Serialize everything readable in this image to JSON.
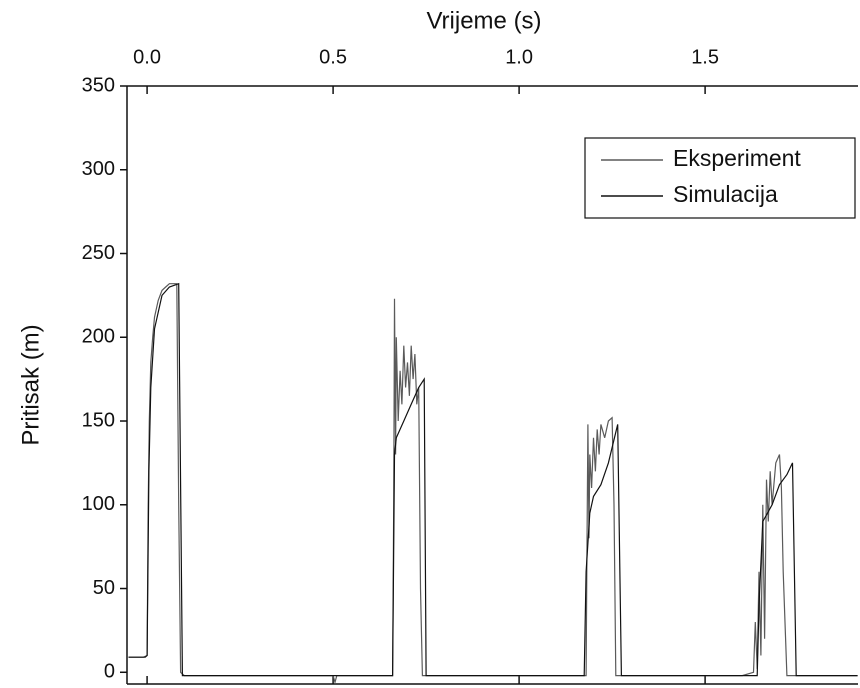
{
  "chart_data": {
    "type": "line",
    "x_label": "Vrijeme (s)",
    "y_label": "Pritisak (m)",
    "xlim": [
      -0.054,
      1.911
    ],
    "ylim": [
      -7,
      350
    ],
    "xticks": [
      {
        "value": 0,
        "label": "0.0"
      },
      0.5,
      {
        "value": 1,
        "label": "1.0"
      },
      1.5
    ],
    "yticks": [
      0,
      50,
      100,
      150,
      200,
      250,
      300,
      350
    ],
    "legend": "upper right",
    "series": [
      {
        "name": "Eksperiment",
        "color": "#5a5a5a",
        "x": [
          -0.05,
          -0.01,
          0.0,
          0.003,
          0.006,
          0.01,
          0.015,
          0.02,
          0.03,
          0.04,
          0.05,
          0.06,
          0.08,
          0.085,
          0.09,
          0.1,
          0.5,
          0.505,
          0.51,
          0.66,
          0.663,
          0.665,
          0.668,
          0.67,
          0.675,
          0.68,
          0.685,
          0.69,
          0.695,
          0.7,
          0.705,
          0.71,
          0.715,
          0.72,
          0.725,
          0.73,
          0.735,
          0.74,
          0.75,
          1.0,
          1.18,
          1.182,
          1.185,
          1.188,
          1.19,
          1.195,
          1.2,
          1.205,
          1.21,
          1.215,
          1.22,
          1.23,
          1.24,
          1.25,
          1.255,
          1.26,
          1.27,
          1.6,
          1.63,
          1.635,
          1.64,
          1.645,
          1.65,
          1.655,
          1.66,
          1.665,
          1.67,
          1.675,
          1.68,
          1.69,
          1.7,
          1.705,
          1.71,
          1.72,
          1.91
        ],
        "values": [
          9,
          9,
          10,
          100,
          150,
          185,
          200,
          212,
          222,
          228,
          230,
          232,
          232,
          100,
          0,
          -2,
          -2,
          -6,
          -2,
          -2,
          100,
          223,
          130,
          200,
          150,
          180,
          160,
          195,
          170,
          185,
          165,
          195,
          175,
          190,
          160,
          170,
          50,
          -2,
          -2,
          -2,
          -2,
          60,
          148,
          80,
          130,
          110,
          140,
          120,
          145,
          130,
          148,
          140,
          150,
          152,
          100,
          -2,
          -2,
          -2,
          0,
          30,
          2,
          60,
          10,
          100,
          20,
          115,
          90,
          120,
          100,
          125,
          130,
          110,
          60,
          -2,
          -2
        ]
      },
      {
        "name": "Simulacija",
        "color": "#111111",
        "x": [
          -0.05,
          -0.005,
          0.0,
          0.005,
          0.01,
          0.02,
          0.04,
          0.06,
          0.085,
          0.095,
          0.66,
          0.665,
          0.67,
          0.69,
          0.71,
          0.73,
          0.745,
          0.75,
          1.175,
          1.18,
          1.19,
          1.2,
          1.22,
          1.24,
          1.265,
          1.275,
          1.64,
          1.645,
          1.655,
          1.68,
          1.7,
          1.72,
          1.735,
          1.745,
          1.91
        ],
        "values": [
          9,
          9,
          10,
          120,
          170,
          205,
          225,
          230,
          232,
          -2,
          -2,
          130,
          140,
          150,
          160,
          170,
          175,
          -2,
          -2,
          60,
          95,
          105,
          112,
          125,
          148,
          -2,
          -2,
          40,
          90,
          100,
          112,
          118,
          125,
          -2,
          -2
        ]
      }
    ]
  }
}
